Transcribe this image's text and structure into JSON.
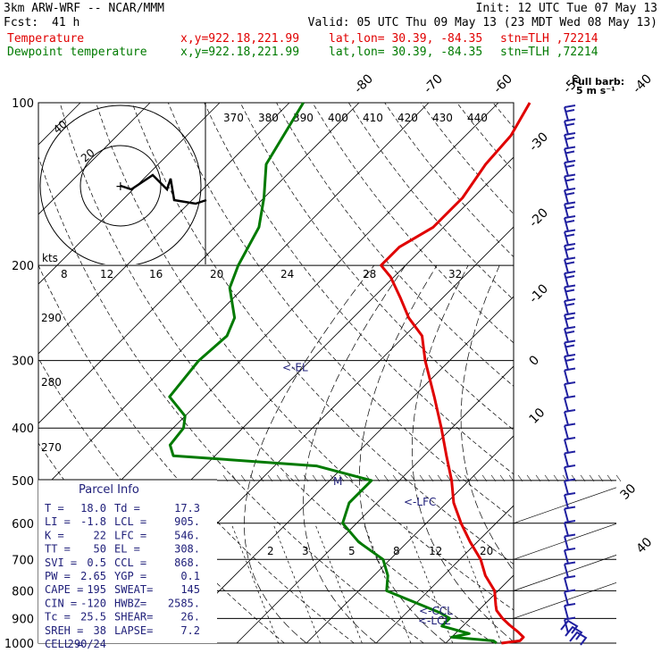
{
  "header": {
    "model": "3km ARW-WRF -- NCAR/MMM",
    "init": "Init: 12 UTC Tue 07 May 13",
    "fcst_label": "Fcst:",
    "fcst_value": "41 h",
    "valid": "Valid: 05 UTC Thu 09 May 13 (23 MDT Wed 08 May 13)",
    "rows": [
      {
        "name": "Temperature",
        "xy": "x,y=922.18,221.99",
        "latlon": "lat,lon= 30.39, -84.35",
        "stn": "stn=TLH ,72214",
        "color": "#e00000"
      },
      {
        "name": "Dewpoint temperature",
        "xy": "x,y=922.18,221.99",
        "latlon": "lat,lon= 30.39, -84.35",
        "stn": "stn=TLH ,72214",
        "color": "#007a00"
      }
    ]
  },
  "barb_legend": {
    "title": "Full barb:",
    "units": "5 m s⁻¹"
  },
  "colors": {
    "temperature": "#e00000",
    "dewpoint": "#007a00",
    "barbs": "#2020a0",
    "hodograph": "#000000",
    "annotation": "#20207a"
  },
  "parcel_info": {
    "title": "Parcel Info",
    "rows": [
      [
        "T  =",
        "18.0",
        "Td =",
        "17.3"
      ],
      [
        "LI =",
        "-1.8",
        "LCL =",
        "905."
      ],
      [
        "K  =",
        "22",
        "LFC =",
        "546."
      ],
      [
        "TT =",
        "50",
        "EL  =",
        "308."
      ],
      [
        "SVI =",
        "0.5",
        "CCL =",
        "868."
      ],
      [
        "PW =",
        "2.65",
        "YGP =",
        "0.1"
      ],
      [
        "CAPE =",
        "195",
        "SWEAT=",
        "145"
      ],
      [
        "CIN =",
        "-120",
        "HWBZ=",
        "2585."
      ],
      [
        "Tc =",
        "25.5",
        "SHEAR=",
        "26."
      ],
      [
        "SREH =",
        "38",
        "LAPSE=",
        "7.2"
      ],
      [
        "CELL =",
        "290/24",
        "",
        ""
      ]
    ]
  },
  "annotations": [
    {
      "text": "<-EL",
      "p": 308
    },
    {
      "text": "M",
      "p": 500
    },
    {
      "text": "<-LFC",
      "p": 546
    },
    {
      "text": "<-CCL",
      "p": 868
    },
    {
      "text": "<-LCL",
      "p": 905
    }
  ],
  "hodograph": {
    "units_label": "kts",
    "ring_labels": [
      "20",
      "40"
    ],
    "trace": [
      [
        0,
        0
      ],
      [
        3,
        1
      ],
      [
        9,
        -3
      ],
      [
        13,
        1
      ],
      [
        14,
        -2
      ],
      [
        15,
        4
      ],
      [
        21,
        5
      ],
      [
        24,
        4
      ]
    ]
  },
  "chart_data": {
    "type": "skew-t",
    "pressure_levels": [
      100,
      200,
      300,
      400,
      500,
      600,
      700,
      800,
      900,
      1000
    ],
    "temp_ticks": [
      -90,
      -80,
      -70,
      -60,
      -50,
      -40,
      -30,
      -20,
      -10,
      0,
      10,
      20,
      30,
      40
    ],
    "theta_labels": [
      "370",
      "380",
      "390",
      "400",
      "410",
      "420",
      "430",
      "440"
    ],
    "thetae_labels": [
      "270",
      "280",
      "290"
    ],
    "mixing_ratio_labels": [
      "2",
      "3",
      "5",
      "8",
      "12",
      "20"
    ],
    "temp_labels_upper": [
      "8",
      "12",
      "16",
      "20",
      "24",
      "28",
      "32"
    ],
    "temperature": [
      [
        1000,
        18.0
      ],
      [
        990,
        20.3
      ],
      [
        975,
        20.3
      ],
      [
        955,
        18.9
      ],
      [
        925,
        16.5
      ],
      [
        900,
        14.6
      ],
      [
        870,
        12.6
      ],
      [
        850,
        11.7
      ],
      [
        800,
        9.5
      ],
      [
        750,
        6.0
      ],
      [
        700,
        3.0
      ],
      [
        650,
        -1.0
      ],
      [
        600,
        -5.0
      ],
      [
        550,
        -9.0
      ],
      [
        500,
        -12.5
      ],
      [
        450,
        -16.8
      ],
      [
        400,
        -21.5
      ],
      [
        350,
        -27.0
      ],
      [
        300,
        -33.5
      ],
      [
        270,
        -37.5
      ],
      [
        250,
        -42.0
      ],
      [
        230,
        -46.0
      ],
      [
        210,
        -50.5
      ],
      [
        200,
        -53.5
      ],
      [
        185,
        -53.5
      ],
      [
        170,
        -51.5
      ],
      [
        150,
        -51.5
      ],
      [
        130,
        -53.0
      ],
      [
        115,
        -53.5
      ],
      [
        100,
        -55.5
      ]
    ],
    "dewpoint": [
      [
        1000,
        17.3
      ],
      [
        990,
        16.5
      ],
      [
        975,
        10.0
      ],
      [
        960,
        12.0
      ],
      [
        930,
        7.0
      ],
      [
        900,
        7.0
      ],
      [
        880,
        5.0
      ],
      [
        850,
        1.0
      ],
      [
        800,
        -6.0
      ],
      [
        750,
        -8.0
      ],
      [
        700,
        -11.0
      ],
      [
        650,
        -17.0
      ],
      [
        600,
        -22.0
      ],
      [
        550,
        -24.0
      ],
      [
        500,
        -24.0
      ],
      [
        470,
        -34.0
      ],
      [
        450,
        -56.0
      ],
      [
        430,
        -58.0
      ],
      [
        400,
        -58.5
      ],
      [
        380,
        -60.0
      ],
      [
        350,
        -65.0
      ],
      [
        300,
        -66.0
      ],
      [
        270,
        -65.5
      ],
      [
        250,
        -67.0
      ],
      [
        220,
        -72.0
      ],
      [
        200,
        -74.0
      ],
      [
        170,
        -76.5
      ],
      [
        150,
        -80.0
      ],
      [
        130,
        -84.5
      ],
      [
        100,
        -88.0
      ]
    ],
    "wind_barbs_note": "column of wind barbs on right side",
    "full_barb": "5 m s-1",
    "ylim": [
      1000,
      100
    ]
  }
}
